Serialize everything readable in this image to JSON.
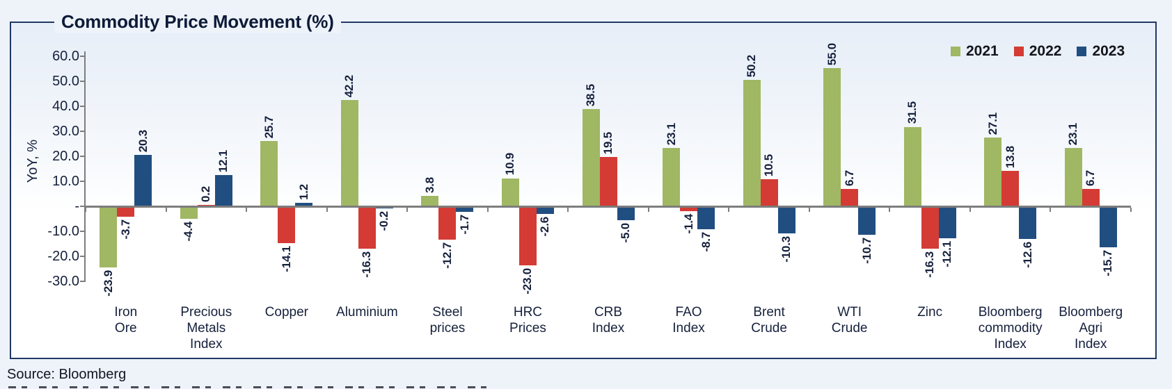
{
  "title": "Commodity Price Movement (%)",
  "source_note": "Source: Bloomberg",
  "chart_data": {
    "type": "bar",
    "title": "Commodity Price Movement (%)",
    "xlabel": "",
    "ylabel": "YoY, %",
    "ylim": [
      -30,
      60
    ],
    "grid": false,
    "legend_position": "top-right",
    "ytick_values": [
      60,
      50,
      40,
      30,
      20,
      10,
      0,
      -10,
      -20,
      -30
    ],
    "ytick_labels": [
      "60.0",
      "50.0",
      "40.0",
      "30.0",
      "20.0",
      "10.0",
      "-",
      "-10.0",
      "-20.0",
      "-30.0"
    ],
    "categories": [
      "Iron\nOre",
      "Precious\nMetals\nIndex",
      "Copper",
      "Aluminium",
      "Steel\nprices",
      "HRC\nPrices",
      "CRB\nIndex",
      "FAO\nIndex",
      "Brent\nCrude",
      "WTI\nCrude",
      "Zinc",
      "Bloomberg\ncommodity\nIndex",
      "Bloomberg\nAgri\nIndex"
    ],
    "series": [
      {
        "name": "2021",
        "color": "#a0b763",
        "values": [
          -23.9,
          -4.4,
          25.7,
          42.2,
          3.8,
          10.9,
          38.5,
          23.1,
          50.2,
          55.0,
          31.5,
          27.1,
          23.1
        ]
      },
      {
        "name": "2022",
        "color": "#d33b34",
        "values": [
          -3.7,
          0.2,
          -14.1,
          -16.3,
          -12.7,
          -23.0,
          19.5,
          -1.4,
          10.5,
          6.7,
          -16.3,
          13.8,
          6.7
        ]
      },
      {
        "name": "2023",
        "color": "#214e80",
        "values": [
          20.3,
          12.1,
          1.2,
          -0.2,
          -1.7,
          -2.6,
          -5.0,
          -8.7,
          -10.3,
          -10.7,
          -12.1,
          -12.6,
          -15.7
        ]
      }
    ]
  },
  "colors": {
    "page_background": "#eef3fa",
    "frame_border": "#1f3864",
    "axis": "#7d7d7d",
    "text": "#15203c"
  }
}
